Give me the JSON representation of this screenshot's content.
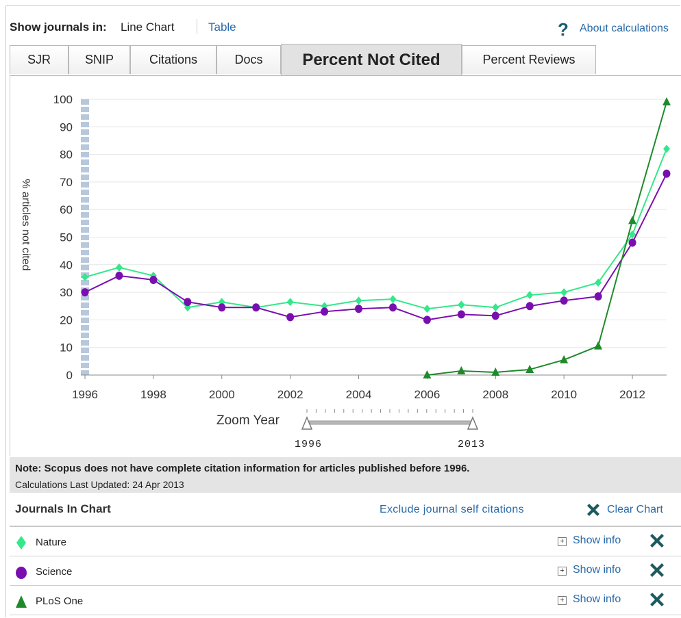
{
  "header": {
    "show_label": "Show journals in:",
    "show_value": "Line Chart",
    "table_link": "Table",
    "help_icon": "question-mark-icon",
    "about_link": "About calculations"
  },
  "tabs": [
    {
      "label": "SJR",
      "active": false
    },
    {
      "label": "SNIP",
      "active": false
    },
    {
      "label": "Citations",
      "active": false
    },
    {
      "label": "Docs",
      "active": false
    },
    {
      "label": "Percent Not Cited",
      "active": true
    },
    {
      "label": "Percent Reviews",
      "active": false
    }
  ],
  "chart_data": {
    "type": "line",
    "ylabel": "% articles not cited",
    "xlabel": "",
    "ylim": [
      0,
      100
    ],
    "xlim": [
      1996,
      2013
    ],
    "yticks": [
      0,
      10,
      20,
      30,
      40,
      50,
      60,
      70,
      80,
      90,
      100
    ],
    "xticks": [
      1996,
      1998,
      2000,
      2002,
      2004,
      2006,
      2008,
      2010,
      2012
    ],
    "grid": "horizontal",
    "legend": "below chart",
    "series": [
      {
        "name": "Nature",
        "color": "#33e88a",
        "marker": "diamond",
        "x": [
          1996,
          1997,
          1998,
          1999,
          2000,
          2001,
          2002,
          2003,
          2004,
          2005,
          2006,
          2007,
          2008,
          2009,
          2010,
          2011,
          2012,
          2013
        ],
        "y": [
          35.5,
          39,
          36,
          24.5,
          26.5,
          24.5,
          26.5,
          25,
          27,
          27.5,
          24,
          25.5,
          24.5,
          29,
          30,
          33.5,
          51,
          82
        ]
      },
      {
        "name": "Science",
        "color": "#7a0fb0",
        "marker": "circle",
        "x": [
          1996,
          1997,
          1998,
          1999,
          2000,
          2001,
          2002,
          2003,
          2004,
          2005,
          2006,
          2007,
          2008,
          2009,
          2010,
          2011,
          2012,
          2013
        ],
        "y": [
          30,
          36,
          34.5,
          26.5,
          24.5,
          24.5,
          21,
          23,
          24,
          24.5,
          20,
          22,
          21.5,
          25,
          27,
          28.5,
          48,
          73
        ]
      },
      {
        "name": "PLoS One",
        "color": "#1f8a2a",
        "marker": "triangle",
        "x": [
          2006,
          2007,
          2008,
          2009,
          2010,
          2011,
          2012,
          2013
        ],
        "y": [
          0,
          1.5,
          1,
          2,
          5.5,
          10.5,
          56,
          99
        ]
      }
    ]
  },
  "zoom": {
    "label": "Zoom Year",
    "start": "1996",
    "end": "2013"
  },
  "note": {
    "main": "Note: Scopus does not have complete citation information for articles published before 1996.",
    "sub": "Calculations Last Updated: 24 Apr 2013"
  },
  "journals": {
    "title": "Journals In Chart",
    "exclude_link": "Exclude journal self citations",
    "clear_label": "Clear Chart",
    "clear_icon": "close-x-icon",
    "items": [
      {
        "name": "Nature",
        "marker": "diamond",
        "color": "#33e88a",
        "info": "Show info"
      },
      {
        "name": "Science",
        "marker": "circle",
        "color": "#7a0fb0",
        "info": "Show info"
      },
      {
        "name": "PLoS One",
        "marker": "triangle",
        "color": "#1f8a2a",
        "info": "Show info"
      }
    ]
  }
}
